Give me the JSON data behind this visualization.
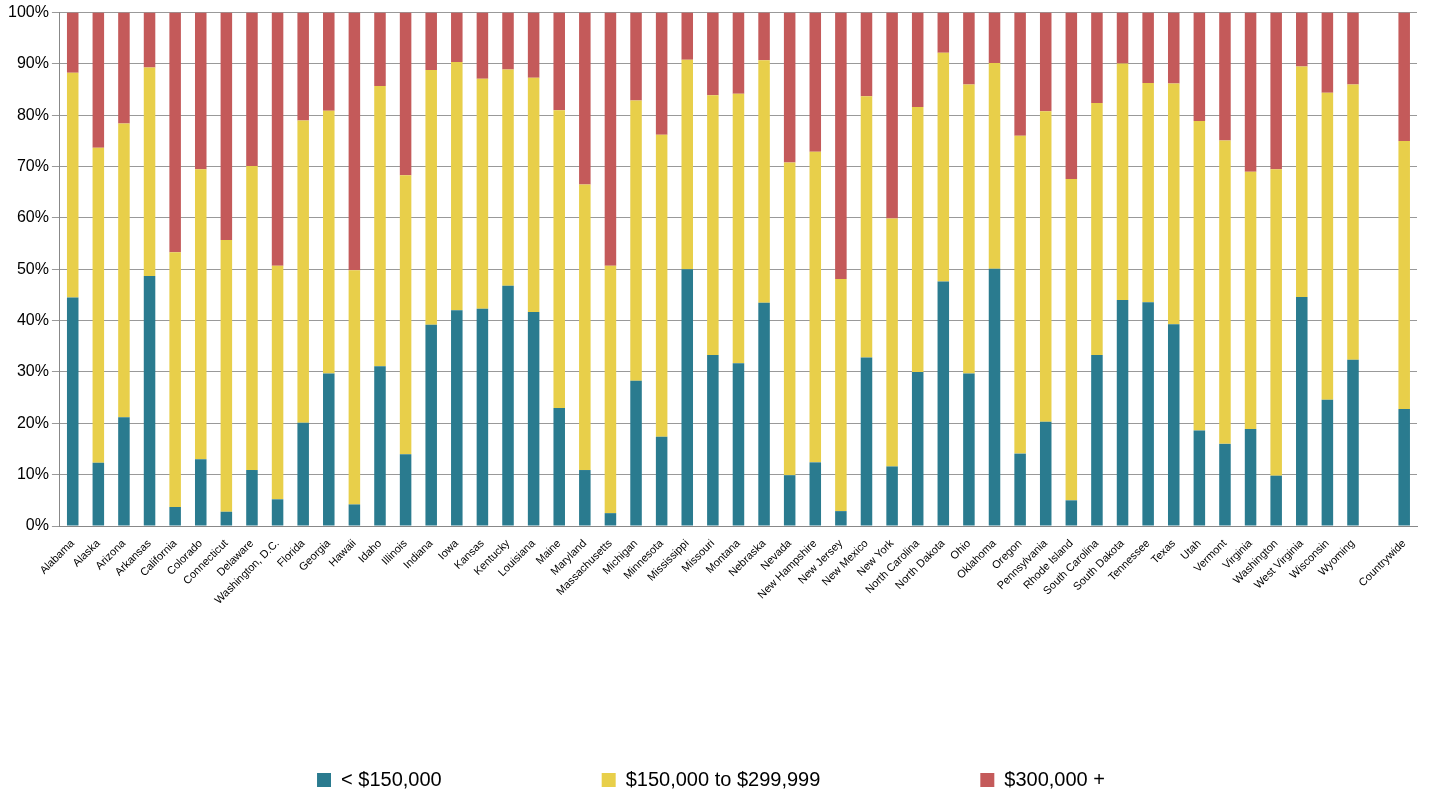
{
  "chart_data": {
    "type": "bar",
    "stacked": true,
    "categories": [
      "Alabama",
      "Alaska",
      "Arizona",
      "Arkansas",
      "California",
      "Colorado",
      "Connecticut",
      "Delaware",
      "Washington, D.C.",
      "Florida",
      "Georgia",
      "Hawaii",
      "Idaho",
      "Illinois",
      "Indiana",
      "Iowa",
      "Kansas",
      "Kentucky",
      "Louisiana",
      "Maine",
      "Maryland",
      "Massachusetts",
      "Michigan",
      "Minnesota",
      "Mississippi",
      "Missouri",
      "Montana",
      "Nebraska",
      "Nevada",
      "New Hampshire",
      "New Jersey",
      "New Mexico",
      "New York",
      "North Carolina",
      "North Dakota",
      "Ohio",
      "Oklahoma",
      "Oregon",
      "Pennsylvania",
      "Rhode Island",
      "South Carolina",
      "South Dakota",
      "Tennessee",
      "Texas",
      "Utah",
      "Vermont",
      "Virginia",
      "Washington",
      "West Virginia",
      "Wisconsin",
      "Wyoming",
      null,
      "Countrywide"
    ],
    "series": [
      {
        "name": "< $150,000",
        "color": "#2a7b8f",
        "values": [
          44.5,
          12.3,
          21.2,
          48.7,
          3.7,
          13.0,
          2.8,
          10.9,
          5.2,
          20.1,
          29.7,
          4.2,
          31.1,
          14.0,
          39.2,
          42.0,
          42.3,
          46.8,
          41.7,
          23.0,
          10.9,
          2.5,
          28.3,
          17.4,
          50.0,
          33.3,
          31.7,
          43.5,
          9.9,
          12.4,
          2.9,
          32.8,
          11.6,
          30.0,
          47.6,
          29.7,
          50.1,
          14.1,
          20.3,
          5.0,
          33.3,
          44.0,
          43.6,
          39.3,
          18.6,
          16.0,
          18.9,
          9.8,
          44.6,
          24.6,
          32.4,
          null,
          22.8
        ]
      },
      {
        "name": "$150,000 to $299,999",
        "color": "#e8cf4a",
        "values": [
          43.8,
          61.4,
          57.2,
          40.6,
          49.6,
          56.5,
          52.9,
          59.2,
          45.5,
          58.9,
          51.2,
          45.6,
          54.6,
          54.3,
          49.6,
          48.4,
          44.8,
          42.1,
          45.6,
          58.0,
          55.6,
          48.2,
          54.6,
          58.8,
          40.8,
          50.6,
          52.5,
          47.2,
          60.9,
          60.5,
          45.2,
          50.9,
          48.3,
          51.6,
          44.6,
          56.3,
          40.1,
          61.9,
          60.5,
          62.6,
          49.1,
          46.1,
          42.7,
          46.9,
          60.3,
          59.1,
          50.1,
          59.7,
          44.9,
          59.8,
          53.6,
          null,
          52.2
        ]
      },
      {
        "name": "$300,000 +",
        "color": "#c45a5a",
        "values": [
          11.7,
          26.3,
          21.6,
          10.7,
          46.7,
          30.5,
          44.3,
          29.9,
          49.3,
          21.0,
          19.1,
          50.2,
          14.3,
          31.7,
          11.2,
          9.6,
          12.9,
          11.1,
          12.7,
          19.0,
          33.5,
          49.3,
          17.1,
          23.8,
          9.2,
          16.1,
          15.8,
          9.3,
          29.2,
          27.1,
          51.9,
          16.3,
          40.1,
          18.4,
          7.8,
          14.0,
          9.8,
          24.0,
          19.2,
          32.4,
          17.6,
          9.9,
          13.7,
          13.8,
          21.1,
          24.9,
          31.0,
          30.5,
          10.5,
          15.6,
          14.0,
          null,
          25.0
        ]
      }
    ],
    "ylim": [
      0,
      100
    ],
    "yticks": [
      {
        "value": 0,
        "label": "0%"
      },
      {
        "value": 10,
        "label": "10%"
      },
      {
        "value": 20,
        "label": "20%"
      },
      {
        "value": 30,
        "label": "30%"
      },
      {
        "value": 40,
        "label": "40%"
      },
      {
        "value": 50,
        "label": "50%"
      },
      {
        "value": 60,
        "label": "60%"
      },
      {
        "value": 70,
        "label": "70%"
      },
      {
        "value": 80,
        "label": "80%"
      },
      {
        "value": 90,
        "label": "90%"
      },
      {
        "value": 100,
        "label": "100%"
      }
    ],
    "grid": "y",
    "legend": "bottom"
  }
}
